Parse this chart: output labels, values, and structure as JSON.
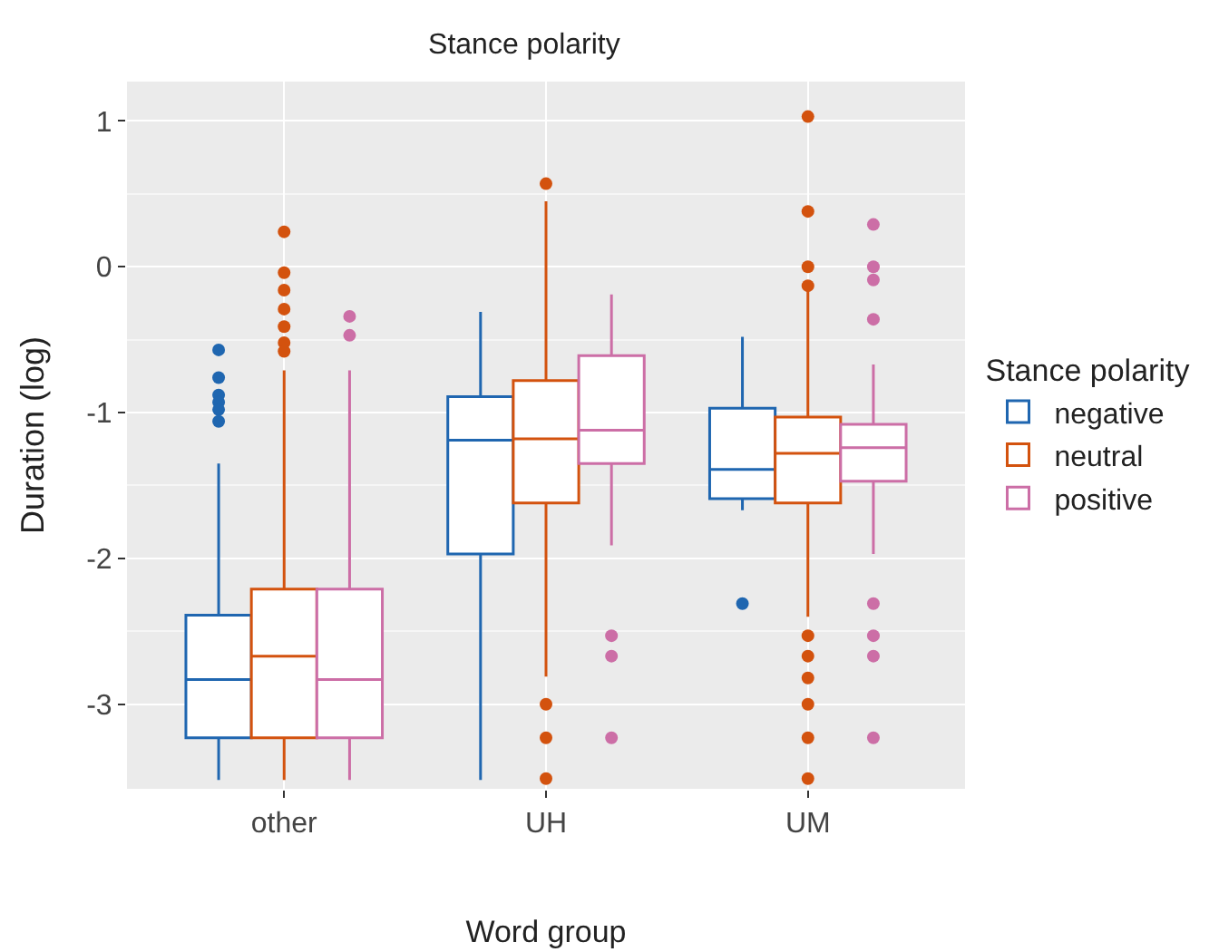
{
  "chart_data": {
    "type": "box",
    "title": "Stance polarity",
    "xlabel": "Word group",
    "ylabel": "Duration (log)",
    "legend_title": "Stance polarity",
    "categories": [
      "other",
      "UH",
      "UM"
    ],
    "ylim": [
      -3.58,
      1.27
    ],
    "yticks": [
      -3,
      -2,
      -1,
      0,
      1
    ],
    "grid": true,
    "legend": "right",
    "series": [
      {
        "name": "negative",
        "color": "#1f66b0",
        "boxes": [
          {
            "low": -3.52,
            "q1": -3.23,
            "median": -2.83,
            "q3": -2.39,
            "high": -1.35,
            "outliers": [
              -0.57,
              -0.76,
              -0.88,
              -0.93,
              -0.98,
              -1.06
            ]
          },
          {
            "low": -3.52,
            "q1": -1.97,
            "median": -1.19,
            "q3": -0.89,
            "high": -0.31
          },
          {
            "low": -1.67,
            "q1": -1.59,
            "median": -1.39,
            "q3": -0.97,
            "high": -0.48,
            "outliers": [
              -2.31
            ]
          }
        ]
      },
      {
        "name": "neutral",
        "color": "#d3520e",
        "boxes": [
          {
            "low": -3.52,
            "q1": -3.23,
            "median": -2.67,
            "q3": -2.21,
            "high": -0.71,
            "outliers": [
              0.24,
              -0.04,
              -0.16,
              -0.29,
              -0.41,
              -0.52,
              -0.58
            ]
          },
          {
            "low": -2.81,
            "q1": -1.62,
            "median": -1.18,
            "q3": -0.78,
            "high": 0.45,
            "outliers": [
              0.57,
              -3.0,
              -3.23,
              -3.51
            ]
          },
          {
            "low": -2.4,
            "q1": -1.62,
            "median": -1.28,
            "q3": -1.03,
            "high": -0.15,
            "outliers": [
              1.03,
              0.38,
              0.0,
              -0.13,
              -2.53,
              -2.67,
              -2.82,
              -3.0,
              -3.23,
              -3.51
            ]
          }
        ]
      },
      {
        "name": "positive",
        "color": "#cc6ea6",
        "boxes": [
          {
            "low": -3.52,
            "q1": -3.23,
            "median": -2.83,
            "q3": -2.21,
            "high": -0.71,
            "outliers": [
              -0.34,
              -0.47
            ]
          },
          {
            "low": -1.91,
            "q1": -1.35,
            "median": -1.12,
            "q3": -0.61,
            "high": -0.19,
            "outliers": [
              -2.53,
              -2.67,
              -3.23
            ]
          },
          {
            "low": -1.97,
            "q1": -1.47,
            "median": -1.24,
            "q3": -1.08,
            "high": -0.67,
            "outliers": [
              0.29,
              0.0,
              -0.09,
              -0.36,
              -2.31,
              -2.53,
              -2.67,
              -3.23
            ]
          }
        ]
      }
    ]
  }
}
